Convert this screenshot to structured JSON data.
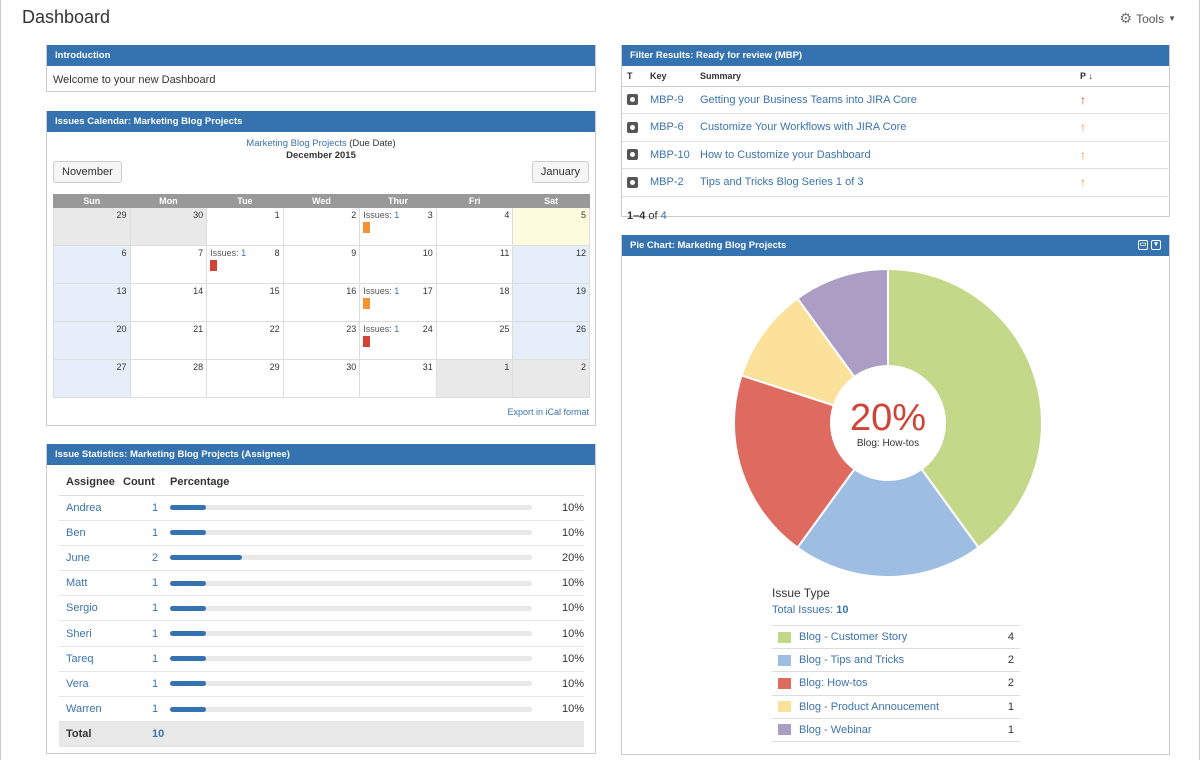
{
  "page": {
    "title": "Dashboard",
    "tools_label": "Tools"
  },
  "intro": {
    "header": "Introduction",
    "text": "Welcome to your new Dashboard"
  },
  "calendar": {
    "header": "Issues Calendar: Marketing Blog Projects",
    "project_link": "Marketing Blog Projects",
    "field": "(Due Date)",
    "month": "December 2015",
    "prev_label": "November",
    "next_label": "January",
    "weekdays": [
      "Sun",
      "Mon",
      "Tue",
      "Wed",
      "Thur",
      "Fri",
      "Sat"
    ],
    "issues_prefix": "Issues:",
    "export_label": "Export in iCal format",
    "weeks": [
      [
        {
          "d": "29",
          "t": "other"
        },
        {
          "d": "30",
          "t": "other"
        },
        {
          "d": "1"
        },
        {
          "d": "2"
        },
        {
          "d": "3",
          "issues": "1",
          "mark": "#f79232"
        },
        {
          "d": "4"
        },
        {
          "d": "5",
          "t": "today"
        }
      ],
      [
        {
          "d": "6",
          "t": "weekend"
        },
        {
          "d": "7"
        },
        {
          "d": "8",
          "issues": "1",
          "mark": "#d04437"
        },
        {
          "d": "9"
        },
        {
          "d": "10"
        },
        {
          "d": "11"
        },
        {
          "d": "12",
          "t": "weekend"
        }
      ],
      [
        {
          "d": "13",
          "t": "weekend"
        },
        {
          "d": "14"
        },
        {
          "d": "15"
        },
        {
          "d": "16"
        },
        {
          "d": "17",
          "issues": "1",
          "mark": "#f79232"
        },
        {
          "d": "18"
        },
        {
          "d": "19",
          "t": "weekend"
        }
      ],
      [
        {
          "d": "20",
          "t": "weekend"
        },
        {
          "d": "21"
        },
        {
          "d": "22"
        },
        {
          "d": "23"
        },
        {
          "d": "24",
          "issues": "1",
          "mark": "#d04437"
        },
        {
          "d": "25"
        },
        {
          "d": "26",
          "t": "weekend"
        }
      ],
      [
        {
          "d": "27",
          "t": "weekend"
        },
        {
          "d": "28"
        },
        {
          "d": "29"
        },
        {
          "d": "30"
        },
        {
          "d": "31"
        },
        {
          "d": "1",
          "t": "other"
        },
        {
          "d": "2",
          "t": "other"
        }
      ]
    ]
  },
  "stats": {
    "header": "Issue Statistics: Marketing Blog Projects (Assignee)",
    "columns": [
      "Assignee",
      "Count",
      "Percentage"
    ],
    "rows": [
      {
        "name": "Andrea",
        "count": "1",
        "pct": "10%",
        "fill": 10
      },
      {
        "name": "Ben",
        "count": "1",
        "pct": "10%",
        "fill": 10
      },
      {
        "name": "June",
        "count": "2",
        "pct": "20%",
        "fill": 20
      },
      {
        "name": "Matt",
        "count": "1",
        "pct": "10%",
        "fill": 10
      },
      {
        "name": "Sergio",
        "count": "1",
        "pct": "10%",
        "fill": 10
      },
      {
        "name": "Sheri",
        "count": "1",
        "pct": "10%",
        "fill": 10
      },
      {
        "name": "Tareq",
        "count": "1",
        "pct": "10%",
        "fill": 10
      },
      {
        "name": "Vera",
        "count": "1",
        "pct": "10%",
        "fill": 10
      },
      {
        "name": "Warren",
        "count": "1",
        "pct": "10%",
        "fill": 10
      }
    ],
    "total_label": "Total",
    "total_count": "10"
  },
  "filter": {
    "header": "Filter Results: Ready for review (MBP)",
    "columns": {
      "t": "T",
      "key": "Key",
      "summary": "Summary",
      "p": "P ↓"
    },
    "rows": [
      {
        "key": "MBP-9",
        "summary": "Getting your Business Teams into JIRA Core",
        "prio": "high"
      },
      {
        "key": "MBP-6",
        "summary": "Customize Your Workflows with JIRA Core",
        "prio": "med"
      },
      {
        "key": "MBP-10",
        "summary": "How to Customize your Dashboard",
        "prio": "med"
      },
      {
        "key": "MBP-2",
        "summary": "Tips and Tricks Blog Series 1 of 3",
        "prio": "med"
      }
    ],
    "count_range": "1–4",
    "count_of": "of",
    "count_total": "4"
  },
  "pie": {
    "header": "Pie Chart: Marketing Blog Projects",
    "center_pct": "20%",
    "center_label": "Blog: How-tos",
    "legend_title": "Issue Type",
    "total_label": "Total Issues:",
    "total_value": "10"
  },
  "chart_data": {
    "type": "pie",
    "labels": [
      "Blog - Customer Story",
      "Blog - Tips and Tricks",
      "Blog: How-tos",
      "Blog - Product Annoucement",
      "Blog - Webinar"
    ],
    "values": [
      4,
      2,
      2,
      1,
      1
    ],
    "colors": [
      "#c4d88a",
      "#9ebde2",
      "#de6a60",
      "#fbe199",
      "#ab9dc3"
    ]
  }
}
